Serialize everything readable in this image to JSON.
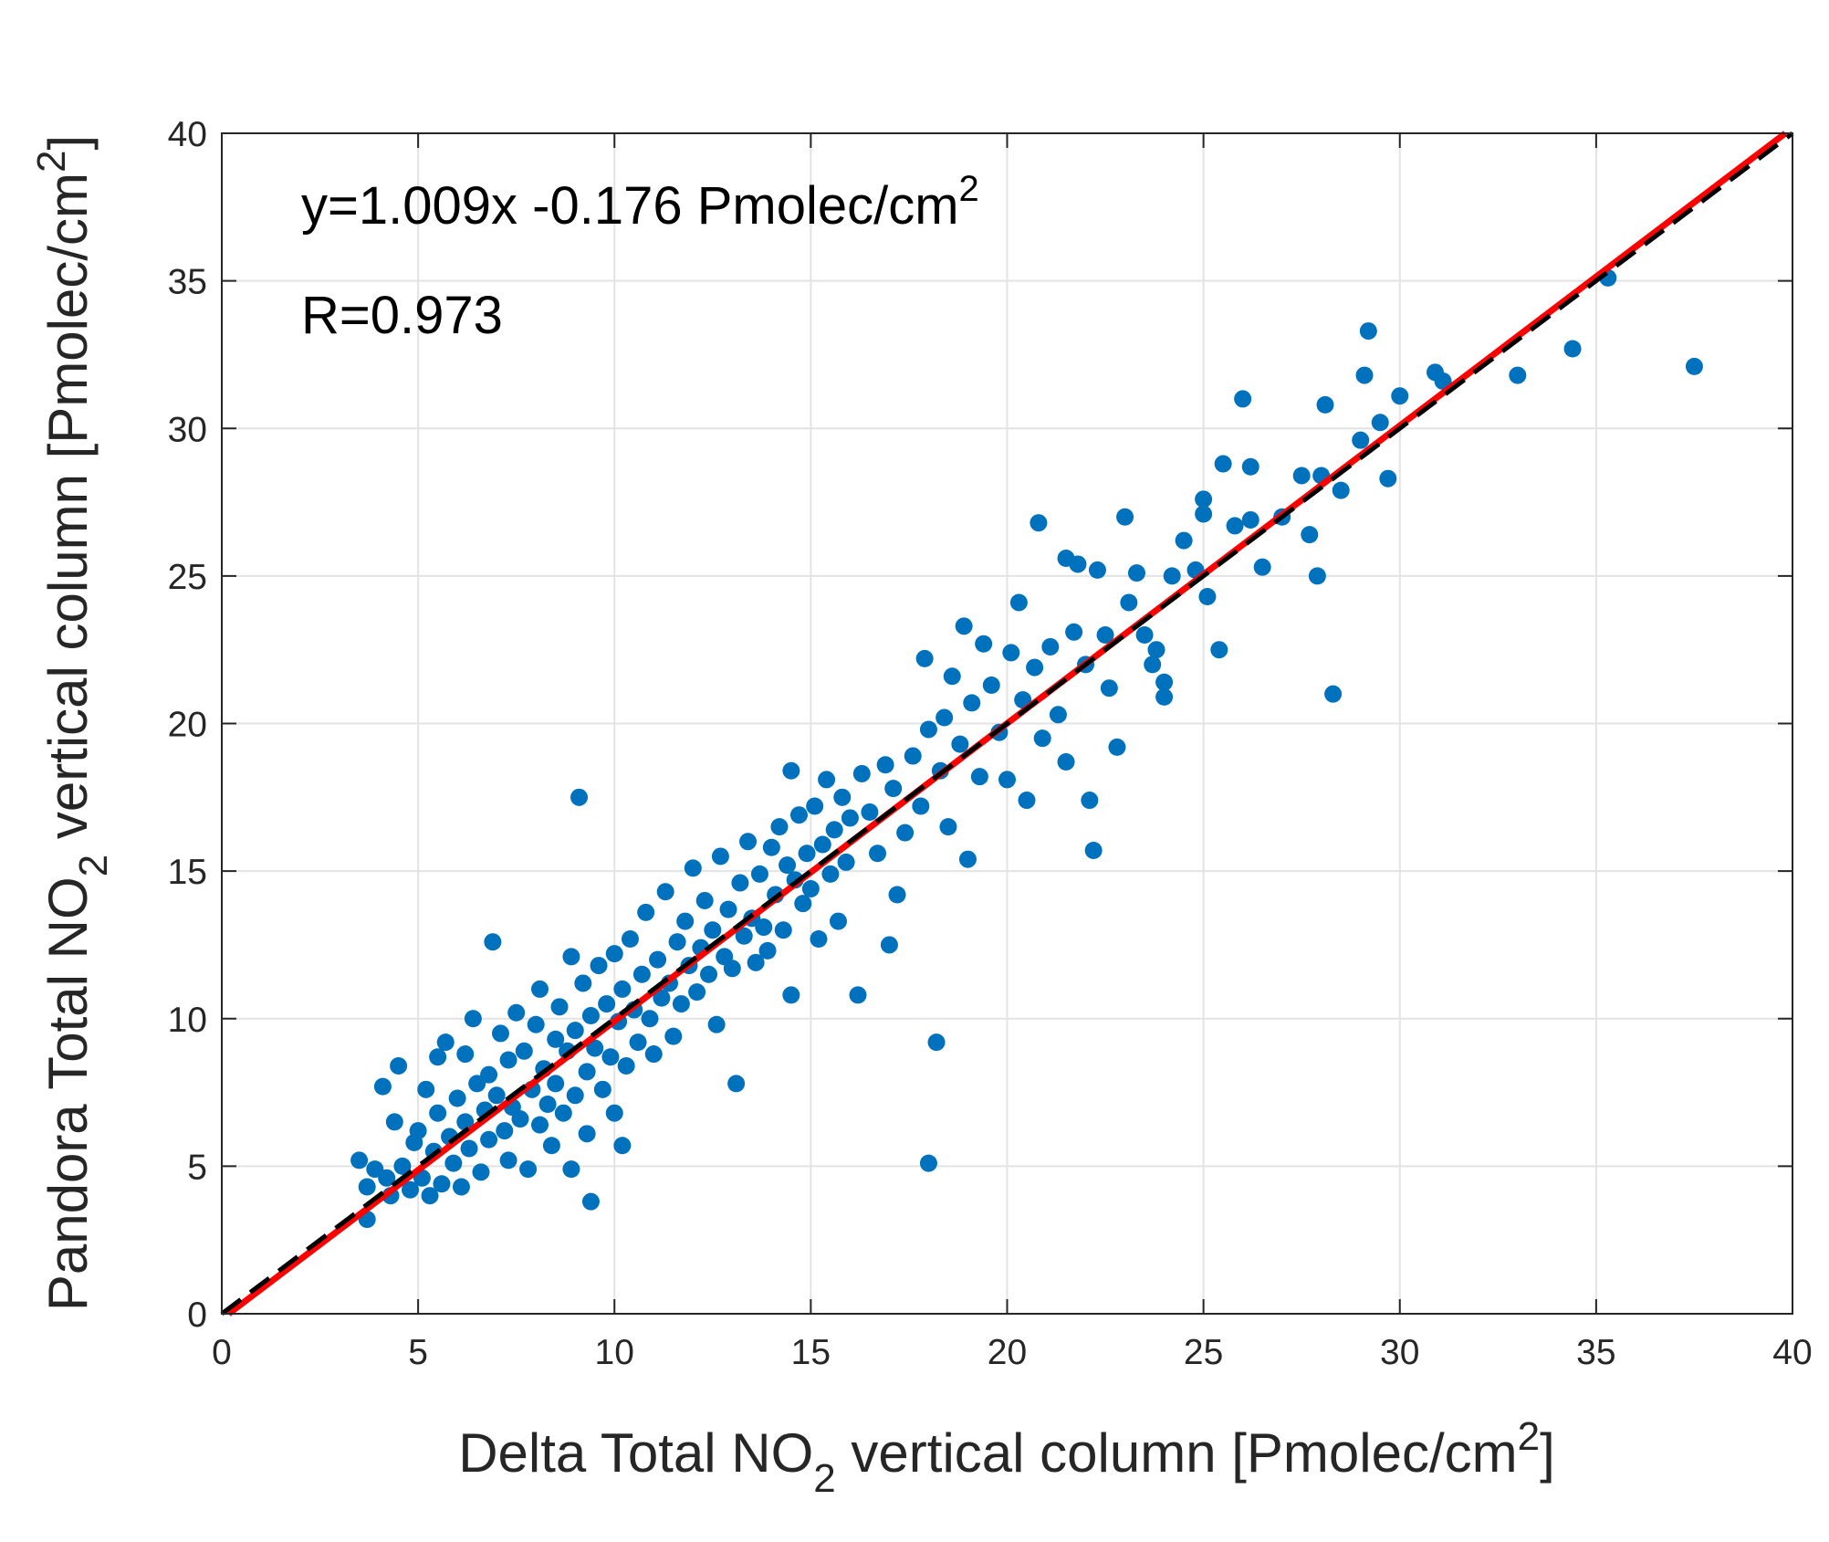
{
  "chart_data": {
    "type": "scatter",
    "xlabel": {
      "prefix": "Delta Total NO",
      "sub": "2",
      "middle": " vertical column [Pmolec/cm",
      "sup": "2",
      "suffix": "]"
    },
    "ylabel": {
      "prefix": "Pandora Total NO",
      "sub": "2",
      "middle": " vertical column [Pmolec/cm",
      "sup": "2",
      "suffix": "]"
    },
    "xlim": [
      0,
      40
    ],
    "ylim": [
      0,
      40
    ],
    "xticks": [
      0,
      5,
      10,
      15,
      20,
      25,
      30,
      35,
      40
    ],
    "yticks": [
      0,
      5,
      10,
      15,
      20,
      25,
      30,
      35,
      40
    ],
    "grid": true,
    "annotations": {
      "fit_equation": "y=1.009x -0.176 Pmolec/cm",
      "fit_equation_sup": "2",
      "correlation": "R=0.973"
    },
    "lines": [
      {
        "style": "solid",
        "color": "#ff0000",
        "slope": 1.009,
        "intercept": -0.176
      },
      {
        "style": "dashed",
        "color": "#000000",
        "slope": 1.0,
        "intercept": 0.0
      }
    ],
    "series": [
      {
        "color": "#0072bd",
        "points": [
          [
            3.5,
            5.2
          ],
          [
            3.7,
            4.3
          ],
          [
            3.7,
            3.2
          ],
          [
            3.9,
            4.9
          ],
          [
            4.1,
            7.7
          ],
          [
            4.2,
            4.6
          ],
          [
            4.3,
            4.0
          ],
          [
            4.4,
            6.5
          ],
          [
            4.5,
            8.4
          ],
          [
            4.6,
            5.0
          ],
          [
            4.8,
            4.2
          ],
          [
            4.9,
            5.8
          ],
          [
            5.0,
            6.2
          ],
          [
            5.1,
            4.6
          ],
          [
            5.2,
            7.6
          ],
          [
            5.3,
            4.0
          ],
          [
            5.4,
            5.5
          ],
          [
            5.5,
            8.7
          ],
          [
            5.5,
            6.8
          ],
          [
            5.6,
            4.4
          ],
          [
            5.7,
            9.2
          ],
          [
            5.8,
            6.0
          ],
          [
            5.9,
            5.1
          ],
          [
            6.0,
            7.3
          ],
          [
            6.1,
            4.3
          ],
          [
            6.2,
            8.8
          ],
          [
            6.2,
            6.5
          ],
          [
            6.3,
            5.6
          ],
          [
            6.4,
            10.0
          ],
          [
            6.5,
            7.8
          ],
          [
            6.6,
            4.8
          ],
          [
            6.7,
            6.9
          ],
          [
            6.8,
            8.1
          ],
          [
            6.8,
            5.9
          ],
          [
            6.9,
            12.6
          ],
          [
            7.0,
            7.4
          ],
          [
            7.1,
            9.5
          ],
          [
            7.2,
            6.2
          ],
          [
            7.3,
            5.2
          ],
          [
            7.3,
            8.6
          ],
          [
            7.4,
            7.0
          ],
          [
            7.5,
            10.2
          ],
          [
            7.6,
            6.6
          ],
          [
            7.7,
            8.9
          ],
          [
            7.8,
            4.9
          ],
          [
            7.9,
            7.6
          ],
          [
            8.0,
            9.8
          ],
          [
            8.1,
            6.4
          ],
          [
            8.1,
            11.0
          ],
          [
            8.2,
            8.3
          ],
          [
            8.3,
            7.1
          ],
          [
            8.4,
            5.7
          ],
          [
            8.5,
            9.3
          ],
          [
            8.5,
            7.8
          ],
          [
            8.6,
            10.4
          ],
          [
            8.7,
            6.8
          ],
          [
            8.8,
            8.9
          ],
          [
            8.9,
            12.1
          ],
          [
            8.9,
            4.9
          ],
          [
            9.0,
            9.6
          ],
          [
            9.0,
            7.4
          ],
          [
            9.1,
            17.5
          ],
          [
            9.2,
            11.2
          ],
          [
            9.3,
            8.2
          ],
          [
            9.3,
            6.1
          ],
          [
            9.4,
            10.1
          ],
          [
            9.4,
            3.8
          ],
          [
            9.5,
            9.0
          ],
          [
            9.6,
            11.8
          ],
          [
            9.7,
            7.6
          ],
          [
            9.8,
            10.5
          ],
          [
            9.9,
            8.7
          ],
          [
            10.0,
            12.2
          ],
          [
            10.0,
            6.8
          ],
          [
            10.1,
            9.9
          ],
          [
            10.2,
            11.0
          ],
          [
            10.2,
            5.7
          ],
          [
            10.3,
            8.4
          ],
          [
            10.4,
            12.7
          ],
          [
            10.5,
            10.3
          ],
          [
            10.6,
            9.2
          ],
          [
            10.7,
            11.5
          ],
          [
            10.8,
            13.6
          ],
          [
            10.9,
            10.0
          ],
          [
            11.0,
            8.8
          ],
          [
            11.1,
            12.0
          ],
          [
            11.2,
            10.7
          ],
          [
            11.3,
            14.3
          ],
          [
            11.4,
            11.2
          ],
          [
            11.5,
            9.4
          ],
          [
            11.6,
            12.6
          ],
          [
            11.7,
            10.5
          ],
          [
            11.8,
            13.3
          ],
          [
            11.9,
            11.8
          ],
          [
            12.0,
            15.1
          ],
          [
            12.1,
            10.9
          ],
          [
            12.2,
            12.4
          ],
          [
            12.3,
            14.0
          ],
          [
            12.4,
            11.5
          ],
          [
            12.5,
            13.0
          ],
          [
            12.6,
            9.8
          ],
          [
            12.7,
            15.5
          ],
          [
            12.8,
            12.1
          ],
          [
            12.9,
            13.7
          ],
          [
            13.0,
            11.7
          ],
          [
            13.1,
            7.8
          ],
          [
            13.2,
            14.6
          ],
          [
            13.3,
            12.8
          ],
          [
            13.4,
            16.0
          ],
          [
            13.5,
            13.4
          ],
          [
            13.6,
            11.9
          ],
          [
            13.7,
            14.9
          ],
          [
            13.8,
            13.1
          ],
          [
            13.9,
            12.3
          ],
          [
            14.0,
            15.8
          ],
          [
            14.1,
            14.2
          ],
          [
            14.2,
            16.5
          ],
          [
            14.3,
            13.0
          ],
          [
            14.4,
            15.2
          ],
          [
            14.5,
            18.4
          ],
          [
            14.5,
            10.8
          ],
          [
            14.6,
            14.7
          ],
          [
            14.7,
            16.9
          ],
          [
            14.8,
            13.9
          ],
          [
            14.9,
            15.6
          ],
          [
            15.0,
            14.4
          ],
          [
            15.1,
            17.2
          ],
          [
            15.2,
            12.7
          ],
          [
            15.3,
            15.9
          ],
          [
            15.4,
            18.1
          ],
          [
            15.5,
            14.9
          ],
          [
            15.6,
            16.4
          ],
          [
            15.7,
            13.3
          ],
          [
            15.8,
            17.5
          ],
          [
            15.9,
            15.3
          ],
          [
            16.0,
            16.8
          ],
          [
            16.2,
            10.8
          ],
          [
            16.3,
            18.3
          ],
          [
            16.5,
            17.0
          ],
          [
            16.7,
            15.6
          ],
          [
            16.9,
            18.6
          ],
          [
            17.0,
            12.5
          ],
          [
            17.1,
            17.8
          ],
          [
            17.2,
            14.2
          ],
          [
            17.4,
            16.3
          ],
          [
            17.6,
            18.9
          ],
          [
            17.8,
            17.2
          ],
          [
            17.9,
            22.2
          ],
          [
            18.0,
            19.8
          ],
          [
            18.0,
            5.1
          ],
          [
            18.2,
            9.2
          ],
          [
            18.3,
            18.4
          ],
          [
            18.4,
            20.2
          ],
          [
            18.5,
            16.5
          ],
          [
            18.6,
            21.6
          ],
          [
            18.8,
            19.3
          ],
          [
            18.9,
            23.3
          ],
          [
            19.0,
            15.4
          ],
          [
            19.1,
            20.7
          ],
          [
            19.3,
            18.2
          ],
          [
            19.4,
            22.7
          ],
          [
            19.6,
            21.3
          ],
          [
            19.8,
            19.7
          ],
          [
            20.0,
            18.1
          ],
          [
            20.1,
            22.4
          ],
          [
            20.3,
            24.1
          ],
          [
            20.4,
            20.8
          ],
          [
            20.5,
            17.4
          ],
          [
            20.7,
            21.9
          ],
          [
            20.8,
            26.8
          ],
          [
            20.9,
            19.5
          ],
          [
            21.1,
            22.6
          ],
          [
            21.3,
            20.3
          ],
          [
            21.5,
            25.6
          ],
          [
            21.5,
            18.7
          ],
          [
            21.7,
            23.1
          ],
          [
            21.8,
            25.4
          ],
          [
            22.0,
            22.0
          ],
          [
            22.1,
            17.4
          ],
          [
            22.2,
            15.7
          ],
          [
            22.3,
            25.2
          ],
          [
            22.5,
            23.0
          ],
          [
            22.6,
            21.2
          ],
          [
            22.8,
            19.2
          ],
          [
            23.0,
            27.0
          ],
          [
            23.1,
            24.1
          ],
          [
            23.3,
            25.1
          ],
          [
            23.5,
            23.0
          ],
          [
            23.7,
            22.0
          ],
          [
            23.8,
            22.5
          ],
          [
            24.0,
            21.4
          ],
          [
            24.0,
            20.9
          ],
          [
            24.2,
            25.0
          ],
          [
            24.5,
            26.2
          ],
          [
            24.8,
            25.2
          ],
          [
            25.0,
            27.1
          ],
          [
            25.0,
            27.6
          ],
          [
            25.1,
            24.3
          ],
          [
            25.4,
            22.5
          ],
          [
            25.5,
            28.8
          ],
          [
            25.8,
            26.7
          ],
          [
            26.0,
            31.0
          ],
          [
            26.2,
            28.7
          ],
          [
            26.2,
            26.9
          ],
          [
            26.5,
            25.3
          ],
          [
            27.0,
            27.0
          ],
          [
            27.5,
            28.4
          ],
          [
            27.7,
            26.4
          ],
          [
            27.9,
            25.0
          ],
          [
            28.0,
            28.4
          ],
          [
            28.1,
            30.8
          ],
          [
            28.3,
            21.0
          ],
          [
            28.5,
            27.9
          ],
          [
            29.0,
            29.6
          ],
          [
            29.1,
            31.8
          ],
          [
            29.2,
            33.3
          ],
          [
            29.5,
            30.2
          ],
          [
            29.7,
            28.3
          ],
          [
            30.0,
            31.1
          ],
          [
            30.9,
            31.9
          ],
          [
            31.1,
            31.6
          ],
          [
            33.0,
            31.8
          ],
          [
            34.4,
            32.7
          ],
          [
            35.3,
            35.1
          ],
          [
            37.5,
            32.1
          ]
        ]
      }
    ]
  }
}
